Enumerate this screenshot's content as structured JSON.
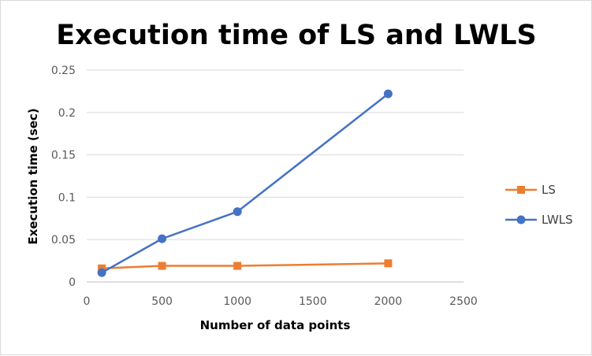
{
  "chart_data": {
    "type": "line",
    "title": "Execution time of LS and LWLS",
    "xlabel": "Number of data points",
    "ylabel": "Execution time (sec)",
    "xlim": [
      0,
      2500
    ],
    "ylim": [
      0,
      0.25
    ],
    "x_ticks": [
      0,
      500,
      1000,
      1500,
      2000,
      2500
    ],
    "y_ticks": [
      0,
      0.05,
      0.1,
      0.15,
      0.2,
      0.25
    ],
    "x_tick_labels": [
      "0",
      "500",
      "1000",
      "1500",
      "2000",
      "2500"
    ],
    "y_tick_labels": [
      "0",
      "0.05",
      "0.1",
      "0.15",
      "0.2",
      "0.25"
    ],
    "grid": "horizontal",
    "legend_position": "right",
    "x": [
      100,
      500,
      1000,
      2000
    ],
    "series": [
      {
        "name": "LS",
        "values": [
          0.016,
          0.019,
          0.019,
          0.022
        ],
        "color": "#ed7d31",
        "marker": "square"
      },
      {
        "name": "LWLS",
        "values": [
          0.011,
          0.051,
          0.083,
          0.222
        ],
        "color": "#4472c4",
        "marker": "circle"
      }
    ]
  }
}
